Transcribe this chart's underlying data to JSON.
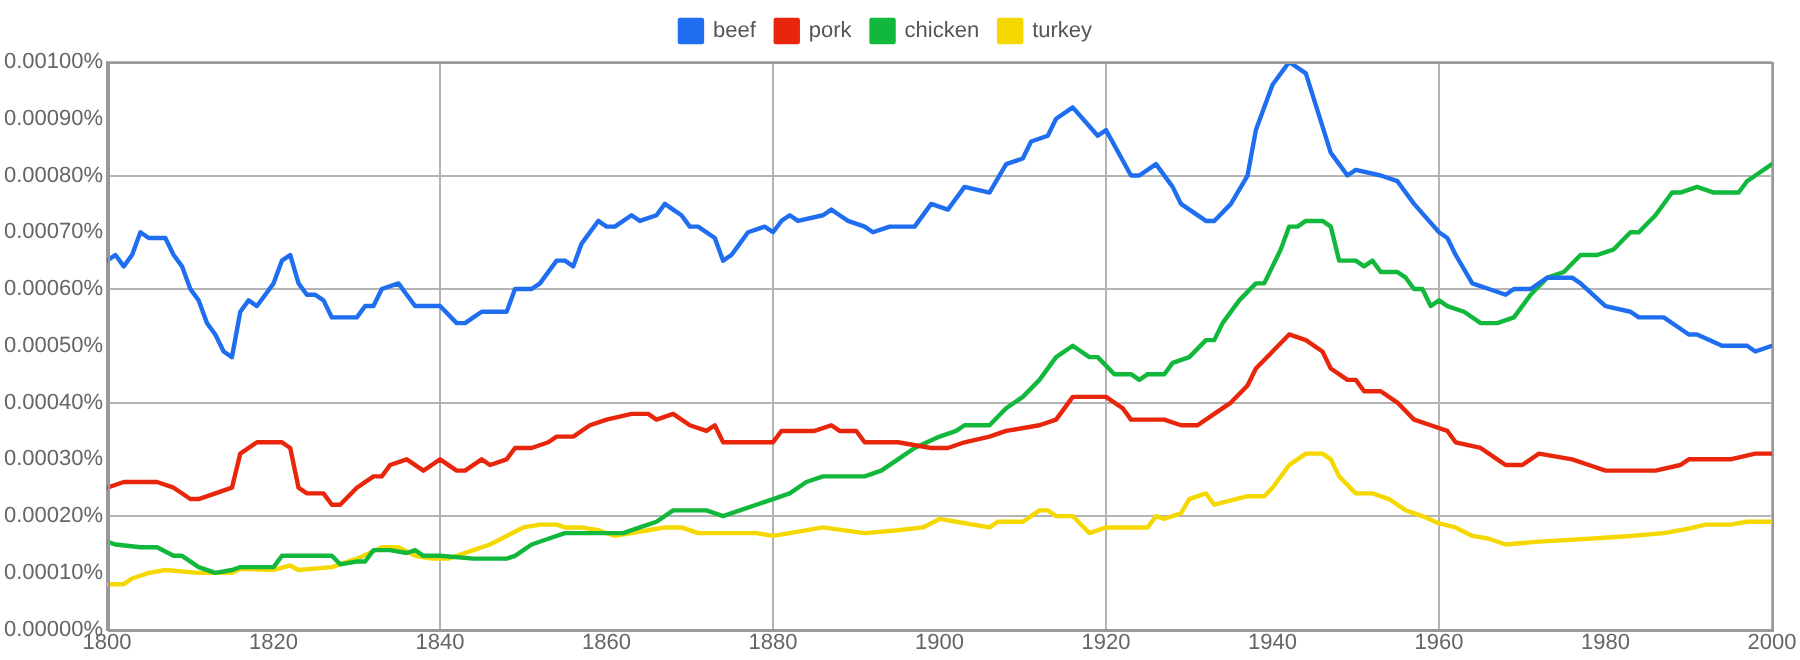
{
  "chart_data": {
    "type": "line",
    "legend": "top",
    "grid": true,
    "marker": "none",
    "line_style": "solid",
    "xlim": [
      1800,
      2000
    ],
    "xticks": [
      1800,
      1820,
      1840,
      1860,
      1880,
      1900,
      1920,
      1940,
      1960,
      1980,
      2000
    ],
    "ylim": [
      0,
      0.001
    ],
    "yticks": [
      {
        "value": 0,
        "label": "0.00000%"
      },
      {
        "value": 0.0001,
        "label": "0.00010%"
      },
      {
        "value": 0.0002,
        "label": "0.00020%"
      },
      {
        "value": 0.0003,
        "label": "0.00030%"
      },
      {
        "value": 0.0004,
        "label": "0.00040%"
      },
      {
        "value": 0.0005,
        "label": "0.00050%"
      },
      {
        "value": 0.0006,
        "label": "0.00060%"
      },
      {
        "value": 0.0007,
        "label": "0.00070%"
      },
      {
        "value": 0.0008,
        "label": "0.00080%"
      },
      {
        "value": 0.0009,
        "label": "0.00090%"
      },
      {
        "value": 0.001,
        "label": "0.00100%"
      }
    ],
    "series": [
      {
        "name": "beef",
        "color": "#1f6ef0",
        "x": [
          1800,
          1801,
          1802,
          1803,
          1804,
          1805,
          1807,
          1808,
          1809,
          1810,
          1811,
          1812,
          1813,
          1814,
          1815,
          1816,
          1817,
          1818,
          1819,
          1820,
          1821,
          1822,
          1823,
          1824,
          1825,
          1826,
          1827,
          1828,
          1830,
          1831,
          1832,
          1833,
          1835,
          1836,
          1837,
          1839,
          1840,
          1842,
          1843,
          1844,
          1845,
          1846,
          1848,
          1849,
          1851,
          1852,
          1854,
          1855,
          1856,
          1857,
          1859,
          1860,
          1861,
          1863,
          1864,
          1866,
          1867,
          1868,
          1869,
          1870,
          1871,
          1873,
          1874,
          1875,
          1876,
          1877,
          1879,
          1880,
          1881,
          1882,
          1883,
          1886,
          1887,
          1888,
          1889,
          1891,
          1892,
          1894,
          1897,
          1899,
          1901,
          1903,
          1906,
          1908,
          1910,
          1911,
          1913,
          1914,
          1916,
          1919,
          1920,
          1923,
          1924,
          1926,
          1928,
          1929,
          1932,
          1933,
          1935,
          1937,
          1938,
          1940,
          1942,
          1944,
          1947,
          1948,
          1949,
          1950,
          1953,
          1955,
          1957,
          1960,
          1961,
          1962,
          1964,
          1966,
          1968,
          1969,
          1971,
          1973,
          1976,
          1977,
          1980,
          1983,
          1984,
          1987,
          1989,
          1990,
          1991,
          1994,
          1997,
          1998,
          2000
        ],
        "values": [
          0.00065,
          0.00066,
          0.00064,
          0.00066,
          0.0007,
          0.00069,
          0.00069,
          0.00066,
          0.00064,
          0.0006,
          0.00058,
          0.00054,
          0.00052,
          0.00049,
          0.00048,
          0.00056,
          0.00058,
          0.00057,
          0.00059,
          0.00061,
          0.00065,
          0.00066,
          0.00061,
          0.00059,
          0.00059,
          0.00058,
          0.00055,
          0.00055,
          0.00055,
          0.00057,
          0.00057,
          0.0006,
          0.00061,
          0.00059,
          0.00057,
          0.00057,
          0.00057,
          0.00054,
          0.00054,
          0.00055,
          0.00056,
          0.00056,
          0.00056,
          0.0006,
          0.0006,
          0.00061,
          0.00065,
          0.00065,
          0.00064,
          0.00068,
          0.00072,
          0.00071,
          0.00071,
          0.00073,
          0.00072,
          0.00073,
          0.00075,
          0.00074,
          0.00073,
          0.00071,
          0.00071,
          0.00069,
          0.00065,
          0.00066,
          0.00068,
          0.0007,
          0.00071,
          0.0007,
          0.00072,
          0.00073,
          0.00072,
          0.00073,
          0.00074,
          0.00073,
          0.00072,
          0.00071,
          0.0007,
          0.00071,
          0.00071,
          0.00075,
          0.00074,
          0.00078,
          0.00077,
          0.00082,
          0.00083,
          0.00086,
          0.00087,
          0.0009,
          0.00092,
          0.00087,
          0.00088,
          0.0008,
          0.0008,
          0.00082,
          0.00078,
          0.00075,
          0.00072,
          0.00072,
          0.00075,
          0.0008,
          0.00088,
          0.00096,
          0.001,
          0.00098,
          0.00084,
          0.00082,
          0.0008,
          0.00081,
          0.0008,
          0.00079,
          0.00075,
          0.0007,
          0.00069,
          0.00066,
          0.00061,
          0.0006,
          0.00059,
          0.0006,
          0.0006,
          0.00062,
          0.00062,
          0.00061,
          0.00057,
          0.00056,
          0.00055,
          0.00055,
          0.00053,
          0.00052,
          0.00052,
          0.0005,
          0.0005,
          0.00049,
          0.0005
        ]
      },
      {
        "name": "pork",
        "color": "#e8260c",
        "x": [
          1800,
          1802,
          1804,
          1806,
          1808,
          1810,
          1811,
          1813,
          1815,
          1816,
          1818,
          1821,
          1822,
          1823,
          1824,
          1826,
          1827,
          1828,
          1830,
          1832,
          1833,
          1834,
          1836,
          1838,
          1839,
          1840,
          1842,
          1843,
          1845,
          1846,
          1848,
          1849,
          1851,
          1853,
          1854,
          1856,
          1858,
          1860,
          1863,
          1865,
          1866,
          1868,
          1870,
          1872,
          1873,
          1874,
          1876,
          1880,
          1881,
          1885,
          1887,
          1888,
          1890,
          1891,
          1895,
          1899,
          1901,
          1903,
          1906,
          1908,
          1912,
          1914,
          1916,
          1920,
          1922,
          1923,
          1927,
          1929,
          1931,
          1933,
          1935,
          1937,
          1938,
          1940,
          1942,
          1944,
          1946,
          1947,
          1949,
          1950,
          1951,
          1953,
          1955,
          1957,
          1959,
          1961,
          1962,
          1965,
          1967,
          1968,
          1970,
          1972,
          1976,
          1978,
          1980,
          1986,
          1989,
          1990,
          1995,
          1998,
          2000
        ],
        "values": [
          0.00025,
          0.00026,
          0.00026,
          0.00026,
          0.00025,
          0.00023,
          0.00023,
          0.00024,
          0.00025,
          0.00031,
          0.00033,
          0.00033,
          0.00032,
          0.00025,
          0.00024,
          0.00024,
          0.00022,
          0.00022,
          0.00025,
          0.00027,
          0.00027,
          0.00029,
          0.0003,
          0.00028,
          0.00029,
          0.0003,
          0.00028,
          0.00028,
          0.0003,
          0.00029,
          0.0003,
          0.00032,
          0.00032,
          0.00033,
          0.00034,
          0.00034,
          0.00036,
          0.00037,
          0.00038,
          0.00038,
          0.00037,
          0.00038,
          0.00036,
          0.00035,
          0.00036,
          0.00033,
          0.00033,
          0.00033,
          0.00035,
          0.00035,
          0.00036,
          0.00035,
          0.00035,
          0.00033,
          0.00033,
          0.00032,
          0.00032,
          0.00033,
          0.00034,
          0.00035,
          0.00036,
          0.00037,
          0.00041,
          0.00041,
          0.00039,
          0.00037,
          0.00037,
          0.00036,
          0.00036,
          0.00038,
          0.0004,
          0.00043,
          0.00046,
          0.00049,
          0.00052,
          0.00051,
          0.00049,
          0.00046,
          0.00044,
          0.00044,
          0.00042,
          0.00042,
          0.0004,
          0.00037,
          0.00036,
          0.00035,
          0.00033,
          0.00032,
          0.0003,
          0.00029,
          0.00029,
          0.00031,
          0.0003,
          0.00029,
          0.00028,
          0.00028,
          0.00029,
          0.0003,
          0.0003,
          0.00031,
          0.00031
        ]
      },
      {
        "name": "chicken",
        "color": "#12b83c",
        "x": [
          1800,
          1801,
          1804,
          1806,
          1808,
          1809,
          1811,
          1813,
          1815,
          1816,
          1820,
          1821,
          1827,
          1828,
          1830,
          1831,
          1832,
          1834,
          1836,
          1837,
          1838,
          1840,
          1844,
          1848,
          1849,
          1851,
          1853,
          1855,
          1862,
          1864,
          1866,
          1868,
          1872,
          1874,
          1876,
          1878,
          1880,
          1882,
          1884,
          1886,
          1891,
          1893,
          1895,
          1897,
          1900,
          1902,
          1903,
          1906,
          1908,
          1910,
          1912,
          1914,
          1916,
          1918,
          1919,
          1921,
          1923,
          1924,
          1925,
          1927,
          1928,
          1930,
          1932,
          1933,
          1934,
          1936,
          1938,
          1939,
          1941,
          1942,
          1943,
          1944,
          1946,
          1947,
          1948,
          1950,
          1951,
          1952,
          1953,
          1955,
          1956,
          1957,
          1958,
          1959,
          1960,
          1961,
          1963,
          1965,
          1967,
          1969,
          1971,
          1973,
          1975,
          1977,
          1979,
          1981,
          1983,
          1984,
          1986,
          1988,
          1989,
          1991,
          1993,
          1995,
          1996,
          1997,
          1998,
          2000
        ],
        "values": [
          0.000155,
          0.00015,
          0.000145,
          0.000145,
          0.00013,
          0.00013,
          0.00011,
          0.0001,
          0.000105,
          0.00011,
          0.00011,
          0.00013,
          0.00013,
          0.000115,
          0.00012,
          0.00012,
          0.00014,
          0.00014,
          0.000135,
          0.00014,
          0.00013,
          0.00013,
          0.000125,
          0.000125,
          0.00013,
          0.00015,
          0.00016,
          0.00017,
          0.00017,
          0.00018,
          0.00019,
          0.00021,
          0.00021,
          0.0002,
          0.00021,
          0.00022,
          0.00023,
          0.00024,
          0.00026,
          0.00027,
          0.00027,
          0.00028,
          0.0003,
          0.00032,
          0.00034,
          0.00035,
          0.00036,
          0.00036,
          0.00039,
          0.00041,
          0.00044,
          0.00048,
          0.0005,
          0.00048,
          0.00048,
          0.00045,
          0.00045,
          0.00044,
          0.00045,
          0.00045,
          0.00047,
          0.00048,
          0.00051,
          0.00051,
          0.00054,
          0.00058,
          0.00061,
          0.00061,
          0.00067,
          0.00071,
          0.00071,
          0.00072,
          0.00072,
          0.00071,
          0.00065,
          0.00065,
          0.00064,
          0.00065,
          0.00063,
          0.00063,
          0.00062,
          0.0006,
          0.0006,
          0.00057,
          0.00058,
          0.00057,
          0.00056,
          0.00054,
          0.00054,
          0.00055,
          0.00059,
          0.00062,
          0.00063,
          0.00066,
          0.00066,
          0.00067,
          0.0007,
          0.0007,
          0.00073,
          0.00077,
          0.00077,
          0.00078,
          0.00077,
          0.00077,
          0.00077,
          0.00079,
          0.0008,
          0.00082
        ]
      },
      {
        "name": "turkey",
        "color": "#f5d800",
        "x": [
          1800,
          1802,
          1803,
          1805,
          1807,
          1811,
          1815,
          1816,
          1820,
          1822,
          1823,
          1827,
          1830,
          1832,
          1833,
          1835,
          1837,
          1839,
          1841,
          1842,
          1844,
          1846,
          1848,
          1850,
          1852,
          1854,
          1855,
          1857,
          1859,
          1861,
          1865,
          1867,
          1869,
          1871,
          1878,
          1880,
          1882,
          1886,
          1891,
          1895,
          1898,
          1900,
          1902,
          1906,
          1907,
          1910,
          1912,
          1913,
          1914,
          1916,
          1918,
          1920,
          1925,
          1926,
          1927,
          1929,
          1930,
          1932,
          1933,
          1937,
          1939,
          1940,
          1942,
          1944,
          1946,
          1947,
          1948,
          1950,
          1952,
          1954,
          1956,
          1958,
          1960,
          1962,
          1964,
          1966,
          1968,
          1972,
          1978,
          1983,
          1987,
          1990,
          1992,
          1995,
          1997,
          2000
        ],
        "values": [
          8e-05,
          8e-05,
          9e-05,
          0.0001,
          0.000105,
          0.0001,
          0.0001,
          0.000107,
          0.000105,
          0.000113,
          0.000105,
          0.00011,
          0.000125,
          0.000138,
          0.000145,
          0.000145,
          0.00013,
          0.000125,
          0.000125,
          0.00013,
          0.00014,
          0.00015,
          0.000165,
          0.00018,
          0.000185,
          0.000185,
          0.00018,
          0.00018,
          0.000175,
          0.000165,
          0.000175,
          0.00018,
          0.00018,
          0.00017,
          0.00017,
          0.000165,
          0.00017,
          0.00018,
          0.00017,
          0.000175,
          0.00018,
          0.000195,
          0.00019,
          0.00018,
          0.00019,
          0.00019,
          0.00021,
          0.00021,
          0.0002,
          0.0002,
          0.00017,
          0.00018,
          0.00018,
          0.0002,
          0.000195,
          0.000205,
          0.00023,
          0.00024,
          0.00022,
          0.000235,
          0.000235,
          0.00025,
          0.00029,
          0.00031,
          0.00031,
          0.0003,
          0.00027,
          0.00024,
          0.00024,
          0.00023,
          0.00021,
          0.0002,
          0.000187,
          0.00018,
          0.000165,
          0.00016,
          0.00015,
          0.000155,
          0.00016,
          0.000165,
          0.00017,
          0.000178,
          0.000185,
          0.000185,
          0.00019,
          0.00019
        ]
      }
    ]
  }
}
